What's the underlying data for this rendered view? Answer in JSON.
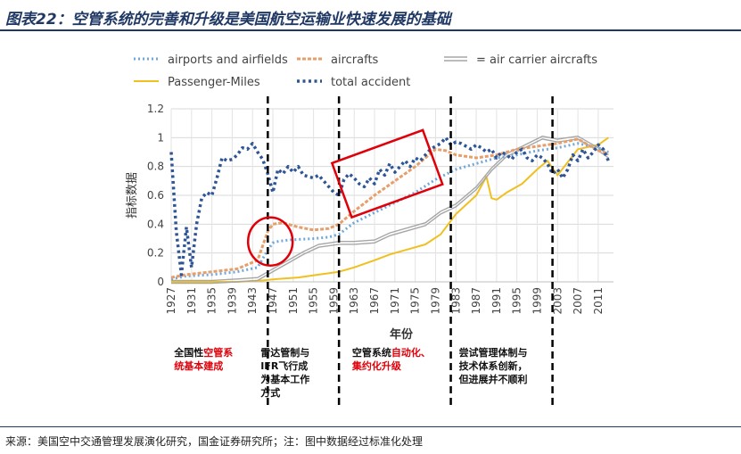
{
  "header": {
    "title": "图表22：空管系统的完善和升级是美国航空运输业快速发展的基础"
  },
  "footer": {
    "source": "来源：美国空中交通管理发展演化研究，国金证券研究所；注：图中数据经过标准化处理"
  },
  "colors": {
    "title": "#1f3864",
    "airports": "#6fa8dc",
    "aircrafts": "#e69f6a",
    "carrier": "#a6a6a6",
    "passenger": "#f0c020",
    "accident": "#2f5597",
    "highlight": "#e0000a"
  },
  "chart_data": {
    "type": "line",
    "title": "",
    "xlabel": "年份",
    "ylabel": "指标数据",
    "xlim": [
      1927,
      2014
    ],
    "ylim": [
      0,
      1.2
    ],
    "yticks": [
      "0",
      "0.2",
      "0.4",
      "0.6",
      "0.8",
      "1",
      "1.2"
    ],
    "xticks": [
      "1927",
      "1931",
      "1935",
      "1939",
      "1943",
      "1947",
      "1951",
      "1955",
      "1959",
      "1963",
      "1967",
      "1971",
      "1975",
      "1979",
      "1983",
      "1987",
      "1991",
      "1995",
      "1999",
      "2003",
      "2007",
      "2011"
    ],
    "grid": true,
    "legend_position": "top",
    "series": [
      {
        "name": "airports and airfields",
        "style": "dotted",
        "x": [
          1927,
          1930,
          1935,
          1940,
          1944,
          1946,
          1947,
          1948,
          1950,
          1955,
          1958,
          1960,
          1963,
          1967,
          1971,
          1975,
          1979,
          1983,
          1987,
          1991,
          1995,
          1999,
          2003,
          2007,
          2011,
          2013
        ],
        "y": [
          0.02,
          0.04,
          0.05,
          0.07,
          0.1,
          0.22,
          0.27,
          0.28,
          0.29,
          0.3,
          0.31,
          0.33,
          0.41,
          0.48,
          0.55,
          0.62,
          0.71,
          0.78,
          0.82,
          0.86,
          0.88,
          0.91,
          0.93,
          0.96,
          0.93,
          0.9
        ]
      },
      {
        "name": "aircrafts",
        "style": "dashed",
        "x": [
          1927,
          1930,
          1935,
          1940,
          1944,
          1946,
          1947,
          1949,
          1952,
          1955,
          1958,
          1960,
          1963,
          1967,
          1971,
          1975,
          1979,
          1981,
          1983,
          1987,
          1991,
          1995,
          1999,
          2003,
          2007,
          2011,
          2013
        ],
        "y": [
          0.03,
          0.05,
          0.07,
          0.09,
          0.15,
          0.35,
          0.4,
          0.41,
          0.38,
          0.36,
          0.37,
          0.4,
          0.49,
          0.6,
          0.7,
          0.8,
          0.92,
          0.91,
          0.88,
          0.86,
          0.88,
          0.92,
          0.94,
          0.96,
          0.99,
          0.91,
          0.89
        ]
      },
      {
        "name": "= air carrier aircrafts",
        "style": "double",
        "x": [
          1927,
          1935,
          1940,
          1944,
          1946,
          1948,
          1950,
          1953,
          1956,
          1958,
          1960,
          1963,
          1967,
          1970,
          1974,
          1977,
          1980,
          1983,
          1987,
          1990,
          1993,
          1996,
          2000,
          2003,
          2007,
          2011,
          2013
        ],
        "y": [
          0.0,
          0.0,
          0.01,
          0.02,
          0.06,
          0.1,
          0.14,
          0.2,
          0.25,
          0.26,
          0.27,
          0.27,
          0.28,
          0.33,
          0.37,
          0.4,
          0.48,
          0.53,
          0.65,
          0.78,
          0.88,
          0.93,
          1.0,
          0.98,
          1.0,
          0.92,
          0.87
        ]
      },
      {
        "name": "Passenger-Miles",
        "style": "solid",
        "x": [
          1927,
          1935,
          1940,
          1945,
          1948,
          1952,
          1956,
          1960,
          1963,
          1967,
          1970,
          1974,
          1977,
          1980,
          1983,
          1987,
          1989,
          1990,
          1991,
          1993,
          1996,
          1999,
          2001,
          2003,
          2007,
          2011,
          2013
        ],
        "y": [
          0.0,
          0.0,
          0.0,
          0.01,
          0.02,
          0.03,
          0.05,
          0.07,
          0.1,
          0.15,
          0.19,
          0.23,
          0.26,
          0.33,
          0.47,
          0.6,
          0.73,
          0.58,
          0.57,
          0.62,
          0.68,
          0.78,
          0.84,
          0.74,
          0.92,
          0.95,
          1.0
        ]
      },
      {
        "name": "total accident",
        "style": "bold-dotted",
        "x": [
          1927,
          1928,
          1929,
          1930,
          1931,
          1932,
          1933,
          1934,
          1935,
          1936,
          1937,
          1938,
          1939,
          1940,
          1941,
          1942,
          1943,
          1944,
          1945,
          1946,
          1947,
          1948,
          1949,
          1950,
          1951,
          1952,
          1953,
          1954,
          1955,
          1956,
          1957,
          1958,
          1959,
          1960,
          1961,
          1962,
          1963,
          1964,
          1965,
          1966,
          1967,
          1968,
          1969,
          1970,
          1971,
          1972,
          1973,
          1974,
          1975,
          1976,
          1977,
          1978,
          1979,
          1980,
          1981,
          1982,
          1983,
          1984,
          1985,
          1986,
          1987,
          1988,
          1989,
          1990,
          1991,
          1992,
          1993,
          1994,
          1995,
          1996,
          1997,
          1998,
          1999,
          2000,
          2001,
          2002,
          2003,
          2004,
          2005,
          2006,
          2007,
          2008,
          2009,
          2010,
          2011,
          2012,
          2013
        ],
        "y": [
          0.9,
          0.35,
          0.05,
          0.38,
          0.1,
          0.4,
          0.58,
          0.62,
          0.6,
          0.72,
          0.86,
          0.84,
          0.85,
          0.88,
          0.93,
          0.92,
          0.96,
          0.9,
          0.85,
          0.75,
          0.62,
          0.78,
          0.75,
          0.8,
          0.76,
          0.8,
          0.74,
          0.73,
          0.72,
          0.74,
          0.7,
          0.66,
          0.62,
          0.6,
          0.71,
          0.75,
          0.72,
          0.68,
          0.66,
          0.72,
          0.68,
          0.78,
          0.74,
          0.82,
          0.76,
          0.8,
          0.84,
          0.8,
          0.86,
          0.84,
          0.88,
          0.92,
          0.94,
          0.96,
          1.0,
          0.95,
          0.97,
          0.96,
          0.94,
          0.92,
          0.95,
          0.93,
          0.9,
          0.92,
          0.86,
          0.9,
          0.88,
          0.85,
          0.9,
          0.92,
          0.86,
          0.84,
          0.88,
          0.86,
          0.82,
          0.75,
          0.78,
          0.72,
          0.78,
          0.88,
          0.84,
          0.92,
          0.86,
          0.9,
          0.95,
          0.92,
          0.84
        ]
      }
    ],
    "dividers": [
      1946,
      1960,
      1982,
      2002
    ],
    "annotations": {
      "circle": {
        "x": 1946.5,
        "y": 0.28
      },
      "box": {
        "x": [
          1960,
          1979
        ],
        "y": [
          0.55,
          0.95
        ]
      }
    },
    "era_labels": [
      {
        "x": 1936,
        "lines": [
          [
            {
              "t": "全国性"
            },
            {
              "t": "空管系",
              "hl": true
            }
          ],
          [
            {
              "t": "统基本建成",
              "hl": true
            }
          ]
        ]
      },
      {
        "x": 1953,
        "lines": [
          [
            {
              "t": "雷达管制与"
            }
          ],
          [
            {
              "t": "IFR飞行成"
            }
          ],
          [
            {
              "t": "为基本工作"
            }
          ],
          [
            {
              "t": "方式"
            }
          ]
        ]
      },
      {
        "x": 1971,
        "lines": [
          [
            {
              "t": "空管系统"
            },
            {
              "t": "自动化、",
              "hl": true
            }
          ],
          [
            {
              "t": "集约化升级",
              "hl": true
            }
          ]
        ]
      },
      {
        "x": 1992,
        "lines": [
          [
            {
              "t": "尝试管理体制与"
            }
          ],
          [
            {
              "t": "技术体系创新，"
            }
          ],
          [
            {
              "t": "但进展并不顺利"
            }
          ]
        ]
      }
    ]
  }
}
